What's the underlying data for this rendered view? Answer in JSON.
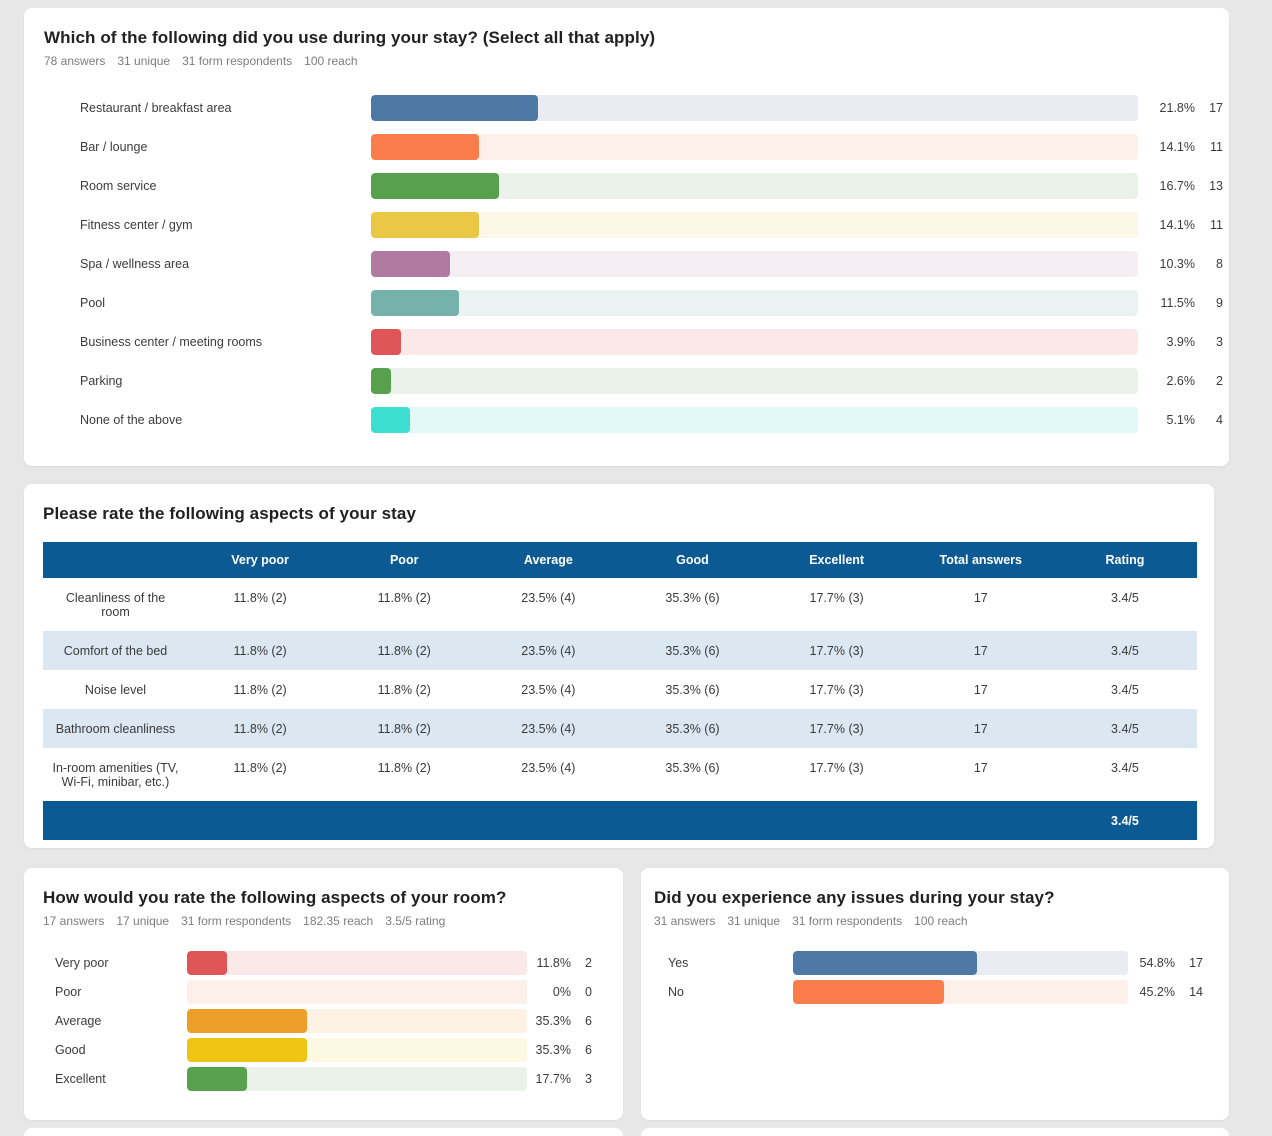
{
  "colors": {
    "page_bg": "#e7e7e7",
    "table_header_bg": "#0b5a94",
    "table_row_alt_bg": "#dbe7f1",
    "accent_blue": "#4e79a7",
    "accent_orange": "#f97d4a",
    "accent_green": "#57a14e",
    "accent_yellow": "#eac845",
    "accent_purple": "#b07aa1",
    "accent_teal": "#76b2ac",
    "accent_red": "#e05658",
    "accent_turquoise": "#3ddfd0"
  },
  "card1": {
    "title": "Which of the following did you use during your stay? (Select all that apply)",
    "stats": [
      "78 answers",
      "31 unique",
      "31 form respondents",
      "100 reach"
    ],
    "bars": [
      {
        "label": "Restaurant / breakfast area",
        "pct": "21.8%",
        "count": "17",
        "color": "#4e79a7",
        "track": "#e9edf3"
      },
      {
        "label": "Bar / lounge",
        "pct": "14.1%",
        "count": "11",
        "color": "#f97d4a",
        "track": "#fdefe9"
      },
      {
        "label": "Room service",
        "pct": "16.7%",
        "count": "13",
        "color": "#57a14e",
        "track": "#ebf2e9"
      },
      {
        "label": "Fitness center / gym",
        "pct": "14.1%",
        "count": "11",
        "color": "#eac845",
        "track": "#fcf7e7"
      },
      {
        "label": "Spa / wellness area",
        "pct": "10.3%",
        "count": "8",
        "color": "#b07aa1",
        "track": "#f5eef3"
      },
      {
        "label": "Pool",
        "pct": "11.5%",
        "count": "9",
        "color": "#76b2ac",
        "track": "#eaf3f2"
      },
      {
        "label": "Business center / meeting rooms",
        "pct": "3.9%",
        "count": "3",
        "color": "#e05658",
        "track": "#fbe9ea"
      },
      {
        "label": "Parking",
        "pct": "2.6%",
        "count": "2",
        "color": "#57a14e",
        "track": "#ebf2e9"
      },
      {
        "label": "None of the above",
        "pct": "5.1%",
        "count": "4",
        "color": "#3ddfd0",
        "track": "#e2f9f7"
      }
    ]
  },
  "card2": {
    "title": "Please rate the following aspects of your stay",
    "table": {
      "headers": [
        "",
        "Very poor",
        "Poor",
        "Average",
        "Good",
        "Excellent",
        "Total answers",
        "Rating"
      ],
      "rows": [
        {
          "label": "Cleanliness of the room",
          "cells": [
            "11.8% (2)",
            "11.8% (2)",
            "23.5% (4)",
            "35.3% (6)",
            "17.7% (3)",
            "17",
            "3.4/5"
          ]
        },
        {
          "label": "Comfort of the bed",
          "cells": [
            "11.8% (2)",
            "11.8% (2)",
            "23.5% (4)",
            "35.3% (6)",
            "17.7% (3)",
            "17",
            "3.4/5"
          ]
        },
        {
          "label": "Noise level",
          "cells": [
            "11.8% (2)",
            "11.8% (2)",
            "23.5% (4)",
            "35.3% (6)",
            "17.7% (3)",
            "17",
            "3.4/5"
          ]
        },
        {
          "label": "Bathroom cleanliness",
          "cells": [
            "11.8% (2)",
            "11.8% (2)",
            "23.5% (4)",
            "35.3% (6)",
            "17.7% (3)",
            "17",
            "3.4/5"
          ]
        },
        {
          "label": "In-room amenities (TV, Wi-Fi, minibar, etc.)",
          "cells": [
            "11.8% (2)",
            "11.8% (2)",
            "23.5% (4)",
            "35.3% (6)",
            "17.7% (3)",
            "17",
            "3.4/5"
          ]
        }
      ],
      "footer_rating": "3.4/5"
    }
  },
  "card3": {
    "title": "How would you rate the following aspects of your room?",
    "stats": [
      "17 answers",
      "17 unique",
      "31 form respondents",
      "182.35 reach",
      "3.5/5 rating"
    ],
    "bars": [
      {
        "label": "Very poor",
        "pct": "11.8%",
        "count": "2",
        "color": "#e05658",
        "track": "#fbe9ea"
      },
      {
        "label": "Poor",
        "pct": "0%",
        "count": "0",
        "color": "#f97d4a",
        "track": "#fdf0eb"
      },
      {
        "label": "Average",
        "pct": "35.3%",
        "count": "6",
        "color": "#ec9f28",
        "track": "#fdf2e4"
      },
      {
        "label": "Good",
        "pct": "35.3%",
        "count": "6",
        "color": "#f0c412",
        "track": "#fdf8e2"
      },
      {
        "label": "Excellent",
        "pct": "17.7%",
        "count": "3",
        "color": "#58a24e",
        "track": "#ebf2e9"
      }
    ]
  },
  "card4": {
    "title": "Did you experience any issues during your stay?",
    "stats": [
      "31 answers",
      "31 unique",
      "31 form respondents",
      "100 reach"
    ],
    "bars": [
      {
        "label": "Yes",
        "pct": "54.8%",
        "count": "17",
        "color": "#4e79a7",
        "track": "#e9edf3"
      },
      {
        "label": "No",
        "pct": "45.2%",
        "count": "14",
        "color": "#f97d4a",
        "track": "#fdf0eb"
      }
    ]
  }
}
